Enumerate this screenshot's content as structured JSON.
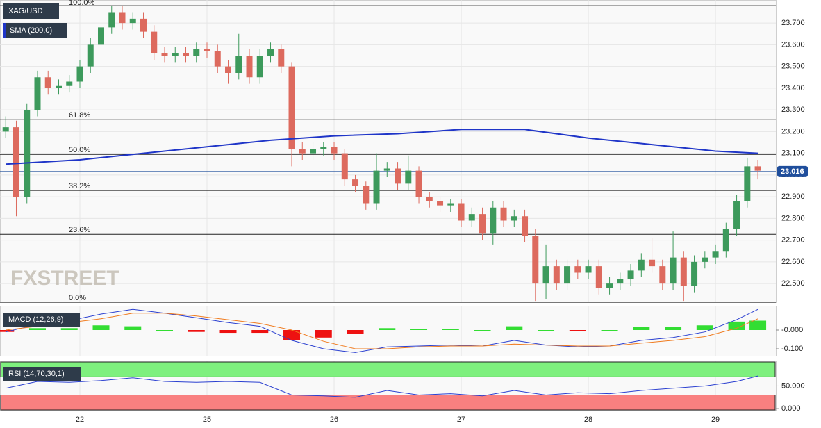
{
  "chart_data": [
    {
      "type": "candlestick",
      "title": "XAG/USD",
      "watermark": "FXSTREET",
      "up_color": "#3d9a5c",
      "down_color": "#dd6a5e",
      "xlim": [
        -7.54,
        65.7
      ],
      "xticks": [
        {
          "value": 0,
          "label": "22"
        },
        {
          "value": 12,
          "label": "25"
        },
        {
          "value": 24,
          "label": "26"
        },
        {
          "value": 36,
          "label": "27"
        },
        {
          "value": 48,
          "label": "28"
        },
        {
          "value": 60,
          "label": "29"
        }
      ],
      "ylim": [
        22.414,
        23.806
      ],
      "yticks": [
        {
          "value": 23.7,
          "label": "23.700"
        },
        {
          "value": 23.6,
          "label": "23.600"
        },
        {
          "value": 23.5,
          "label": "23.500"
        },
        {
          "value": 23.4,
          "label": "23.400"
        },
        {
          "value": 23.3,
          "label": "23.300"
        },
        {
          "value": 23.2,
          "label": "23.200"
        },
        {
          "value": 23.1,
          "label": "23.100"
        },
        {
          "value": 23.0,
          "label": "23.000"
        },
        {
          "value": 22.9,
          "label": "22.900"
        },
        {
          "value": 22.8,
          "label": "22.800"
        },
        {
          "value": 22.7,
          "label": "22.700"
        },
        {
          "value": 22.6,
          "label": "22.600"
        },
        {
          "value": 22.5,
          "label": "22.500"
        }
      ],
      "x": [
        -7,
        -6,
        -5,
        -4,
        -3,
        -2,
        -1,
        0,
        1,
        2,
        3,
        4,
        5,
        6,
        7,
        8,
        9,
        10,
        11,
        12,
        13,
        14,
        15,
        16,
        17,
        18,
        19,
        20,
        21,
        22,
        23,
        24,
        25,
        26,
        27,
        28,
        29,
        30,
        31,
        32,
        33,
        34,
        35,
        36,
        37,
        38,
        39,
        40,
        41,
        42,
        43,
        44,
        45,
        46,
        47,
        48,
        49,
        50,
        51,
        52,
        53,
        54,
        55,
        56,
        57,
        58,
        59,
        60,
        61,
        62,
        63,
        64
      ],
      "open": [
        23.2,
        23.22,
        22.9,
        23.3,
        23.45,
        23.4,
        23.41,
        23.43,
        23.5,
        23.6,
        23.68,
        23.75,
        23.7,
        23.72,
        23.66,
        23.56,
        23.55,
        23.56,
        23.55,
        23.58,
        23.57,
        23.5,
        23.47,
        23.55,
        23.45,
        23.55,
        23.58,
        23.5,
        23.12,
        23.1,
        23.12,
        23.13,
        23.1,
        22.98,
        22.95,
        22.87,
        23.02,
        23.03,
        22.96,
        23.02,
        22.9,
        22.88,
        22.86,
        22.87,
        22.79,
        22.82,
        22.73,
        22.85,
        22.79,
        22.81,
        22.72,
        22.5,
        22.58,
        22.5,
        22.58,
        22.55,
        22.58,
        22.48,
        22.5,
        22.52,
        22.56,
        22.61,
        22.58,
        22.5,
        22.62,
        22.49,
        22.6,
        22.62,
        22.65,
        22.75,
        22.88,
        23.04
      ],
      "high": [
        23.27,
        23.25,
        23.33,
        23.48,
        23.48,
        23.44,
        23.46,
        23.53,
        23.63,
        23.71,
        23.78,
        23.78,
        23.75,
        23.75,
        23.69,
        23.59,
        23.59,
        23.59,
        23.61,
        23.61,
        23.6,
        23.53,
        23.65,
        23.58,
        23.58,
        23.61,
        23.6,
        23.52,
        23.15,
        23.15,
        23.15,
        23.15,
        23.12,
        23.0,
        22.97,
        23.1,
        23.06,
        23.06,
        23.09,
        23.04,
        22.92,
        22.9,
        22.89,
        22.89,
        22.85,
        22.85,
        22.88,
        22.88,
        22.84,
        22.84,
        22.75,
        22.68,
        22.61,
        22.61,
        22.61,
        22.61,
        22.61,
        22.53,
        22.55,
        22.59,
        22.64,
        22.71,
        22.61,
        22.74,
        22.65,
        22.63,
        22.65,
        22.68,
        22.78,
        22.91,
        23.08,
        23.07
      ],
      "low": [
        23.17,
        22.81,
        22.87,
        23.27,
        23.37,
        23.37,
        23.38,
        23.4,
        23.47,
        23.57,
        23.65,
        23.67,
        23.67,
        23.63,
        23.53,
        23.52,
        23.52,
        23.52,
        23.52,
        23.54,
        23.47,
        23.42,
        23.44,
        23.42,
        23.42,
        23.52,
        23.47,
        23.04,
        23.07,
        23.07,
        23.09,
        23.07,
        22.95,
        22.92,
        22.84,
        22.84,
        22.99,
        22.93,
        22.93,
        22.87,
        22.85,
        22.83,
        22.83,
        22.76,
        22.76,
        22.7,
        22.68,
        22.76,
        22.76,
        22.69,
        22.42,
        22.43,
        22.47,
        22.47,
        22.52,
        22.52,
        22.45,
        22.45,
        22.47,
        22.49,
        22.53,
        22.55,
        22.47,
        22.47,
        22.42,
        22.46,
        22.57,
        22.59,
        22.62,
        22.72,
        22.85,
        22.98
      ],
      "close": [
        23.22,
        22.9,
        23.3,
        23.45,
        23.4,
        23.41,
        23.43,
        23.5,
        23.6,
        23.68,
        23.75,
        23.7,
        23.72,
        23.66,
        23.56,
        23.55,
        23.56,
        23.55,
        23.58,
        23.57,
        23.5,
        23.47,
        23.55,
        23.45,
        23.55,
        23.58,
        23.5,
        23.12,
        23.1,
        23.12,
        23.13,
        23.1,
        22.98,
        22.95,
        22.87,
        23.02,
        23.03,
        22.96,
        23.02,
        22.9,
        22.88,
        22.86,
        22.87,
        22.79,
        22.82,
        22.73,
        22.85,
        22.79,
        22.81,
        22.72,
        22.5,
        22.58,
        22.5,
        22.58,
        22.55,
        22.58,
        22.48,
        22.5,
        22.52,
        22.56,
        22.61,
        22.58,
        22.5,
        22.62,
        22.49,
        22.6,
        22.62,
        22.65,
        22.75,
        22.88,
        23.04,
        23.02
      ],
      "series": [
        {
          "name": "SMA (200,0)",
          "color": "#1f35c8",
          "x": [
            -7,
            0,
            6,
            12,
            18,
            24,
            30,
            36,
            42,
            48,
            54,
            60,
            64
          ],
          "values": [
            23.05,
            23.07,
            23.1,
            23.13,
            23.16,
            23.18,
            23.19,
            23.21,
            23.21,
            23.17,
            23.14,
            23.11,
            23.1
          ]
        }
      ],
      "levels": [
        {
          "label": "100.0%",
          "value": 23.78
        },
        {
          "label": "61.8%",
          "value": 23.255
        },
        {
          "label": "50.0%",
          "value": 23.095
        },
        {
          "label": "38.2%",
          "value": 22.929
        },
        {
          "label": "23.6%",
          "value": 22.727
        },
        {
          "label": "0.0%",
          "value": 22.414
        }
      ],
      "last_price": {
        "value": 23.016,
        "label": "23.016",
        "color": "#1f4e9c"
      }
    },
    {
      "type": "macd",
      "title": "MACD (12,26,9)",
      "ylim": [
        -0.137,
        0.1296
      ],
      "yticks": [
        {
          "value": 0,
          "label": "-0.000"
        },
        {
          "value": -0.1,
          "label": "-0.100"
        }
      ],
      "x": [
        -7,
        -4,
        -1,
        2,
        5,
        8,
        11,
        14,
        17,
        20,
        23,
        26,
        29,
        32,
        35,
        38,
        41,
        44,
        47,
        50,
        53,
        56,
        59,
        62,
        64
      ],
      "series": [
        {
          "color": "#2a3fd0",
          "values": [
            -0.01,
            0.03,
            0.05,
            0.085,
            0.11,
            0.09,
            0.065,
            0.04,
            0.02,
            -0.055,
            -0.1,
            -0.12,
            -0.09,
            -0.085,
            -0.08,
            -0.085,
            -0.055,
            -0.08,
            -0.09,
            -0.085,
            -0.055,
            -0.04,
            -0.01,
            0.055,
            0.11
          ]
        },
        {
          "color": "#f07b1e",
          "values": [
            0.0,
            0.02,
            0.04,
            0.06,
            0.09,
            0.09,
            0.075,
            0.055,
            0.035,
            0.0,
            -0.06,
            -0.1,
            -0.1,
            -0.09,
            -0.085,
            -0.085,
            -0.075,
            -0.08,
            -0.085,
            -0.085,
            -0.07,
            -0.055,
            -0.035,
            0.01,
            0.06
          ]
        }
      ],
      "histogram": [
        -0.01,
        0.01,
        0.01,
        0.025,
        0.02,
        0,
        -0.01,
        -0.015,
        -0.015,
        -0.055,
        -0.04,
        -0.02,
        0.01,
        0.005,
        0.005,
        0,
        0.02,
        0,
        -0.005,
        0,
        0.015,
        0.015,
        0.025,
        0.045,
        0.05
      ],
      "up_color": "#33dd33",
      "down_color": "#ee1111"
    },
    {
      "type": "rsi",
      "title": "RSI (14,70,30,1)",
      "ylim": [
        -3,
        106
      ],
      "yticks": [
        {
          "value": 50,
          "label": "50.000"
        },
        {
          "value": 0,
          "label": "0.000"
        }
      ],
      "upper_band": 70,
      "lower_band": 30,
      "upper_color": "#7ef07e",
      "lower_color": "#f98080",
      "x": [
        -7,
        -4,
        -1,
        2,
        5,
        8,
        11,
        14,
        17,
        20,
        23,
        26,
        29,
        32,
        35,
        38,
        41,
        44,
        47,
        50,
        53,
        56,
        59,
        62,
        64
      ],
      "series": [
        {
          "color": "#2a3fd0",
          "values": [
            45,
            60,
            58,
            62,
            68,
            60,
            58,
            60,
            58,
            30,
            28,
            25,
            40,
            30,
            33,
            28,
            40,
            30,
            35,
            33,
            40,
            45,
            50,
            60,
            72
          ]
        }
      ]
    }
  ]
}
